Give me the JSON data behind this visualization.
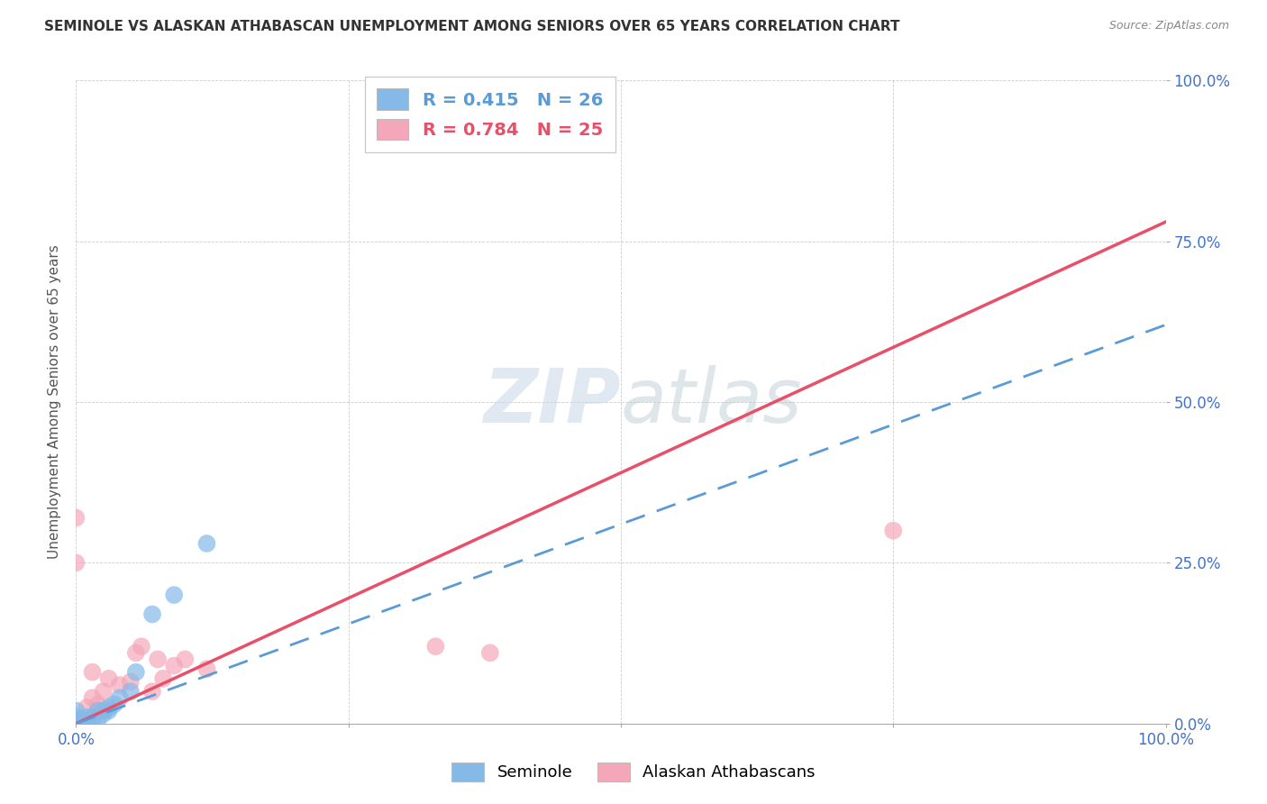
{
  "title": "SEMINOLE VS ALASKAN ATHABASCAN UNEMPLOYMENT AMONG SENIORS OVER 65 YEARS CORRELATION CHART",
  "source": "Source: ZipAtlas.com",
  "ylabel": "Unemployment Among Seniors over 65 years",
  "xlim": [
    0,
    1.0
  ],
  "ylim": [
    0,
    1.0
  ],
  "yticks": [
    0.0,
    0.25,
    0.5,
    0.75,
    1.0
  ],
  "yticklabels": [
    "0.0%",
    "25.0%",
    "50.0%",
    "75.0%",
    "100.0%"
  ],
  "seminole_R": 0.415,
  "seminole_N": 26,
  "athabascan_R": 0.784,
  "athabascan_N": 25,
  "seminole_color": "#85b9e8",
  "athabascan_color": "#f4a7b9",
  "seminole_line_color": "#5b9bd5",
  "athabascan_line_color": "#e8506a",
  "watermark_zip": "ZIP",
  "watermark_atlas": "atlas",
  "background_color": "#ffffff",
  "grid_color": "#cccccc",
  "seminole_line_x0": 0.0,
  "seminole_line_y0": 0.0,
  "seminole_line_x1": 1.0,
  "seminole_line_y1": 0.62,
  "athabascan_line_x0": 0.0,
  "athabascan_line_y0": 0.0,
  "athabascan_line_x1": 1.0,
  "athabascan_line_y1": 0.78,
  "seminole_x": [
    0.0,
    0.0,
    0.0,
    0.0,
    0.0,
    0.0,
    0.005,
    0.005,
    0.01,
    0.01,
    0.012,
    0.015,
    0.015,
    0.02,
    0.02,
    0.025,
    0.025,
    0.03,
    0.03,
    0.035,
    0.04,
    0.05,
    0.055,
    0.07,
    0.09,
    0.12
  ],
  "seminole_y": [
    0.0,
    0.0,
    0.0,
    0.005,
    0.01,
    0.02,
    0.0,
    0.005,
    0.0,
    0.01,
    0.005,
    0.0,
    0.01,
    0.005,
    0.02,
    0.015,
    0.02,
    0.02,
    0.025,
    0.03,
    0.04,
    0.05,
    0.08,
    0.17,
    0.2,
    0.28
  ],
  "athabascan_x": [
    0.0,
    0.0,
    0.0,
    0.0,
    0.005,
    0.01,
    0.01,
    0.015,
    0.015,
    0.02,
    0.025,
    0.03,
    0.04,
    0.05,
    0.055,
    0.06,
    0.07,
    0.075,
    0.08,
    0.09,
    0.1,
    0.12,
    0.33,
    0.38,
    0.75
  ],
  "athabascan_y": [
    0.0,
    0.0,
    0.25,
    0.32,
    0.0,
    0.0,
    0.025,
    0.04,
    0.08,
    0.03,
    0.05,
    0.07,
    0.06,
    0.065,
    0.11,
    0.12,
    0.05,
    0.1,
    0.07,
    0.09,
    0.1,
    0.085,
    0.12,
    0.11,
    0.3
  ]
}
